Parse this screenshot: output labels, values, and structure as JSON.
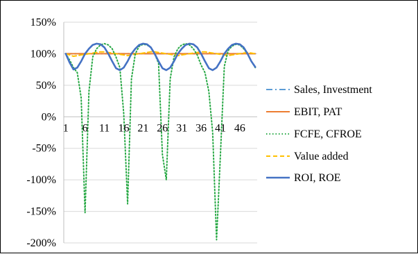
{
  "chart_data": {
    "type": "line",
    "title": "",
    "xlabel": "",
    "ylabel": "",
    "y_tick_labels": [
      "150%",
      "100%",
      "50%",
      "0%",
      "-50%",
      "-100%",
      "-150%",
      "-200%"
    ],
    "y_ticks": [
      150,
      100,
      50,
      0,
      -50,
      -100,
      -150,
      -200
    ],
    "x_tick_labels": [
      "1",
      "6",
      "11",
      "16",
      "21",
      "26",
      "31",
      "36",
      "41",
      "46"
    ],
    "x_ticks": [
      1,
      6,
      11,
      16,
      21,
      26,
      31,
      36,
      41,
      46
    ],
    "xlim": [
      0.5,
      50.5
    ],
    "ylim": [
      -200,
      150
    ],
    "grid": "horizontal",
    "legend_position": "right",
    "x": [
      1,
      2,
      3,
      4,
      5,
      6,
      7,
      8,
      9,
      10,
      11,
      12,
      13,
      14,
      15,
      16,
      17,
      18,
      19,
      20,
      21,
      22,
      23,
      24,
      25,
      26,
      27,
      28,
      29,
      30,
      31,
      32,
      33,
      34,
      35,
      36,
      37,
      38,
      39,
      40,
      41,
      42,
      43,
      44,
      45,
      46,
      47,
      48,
      49,
      50
    ],
    "series": [
      {
        "name": "Sales, Investment",
        "color": "#5b9bd5",
        "dash": "dash-dot",
        "values": [
          100,
          100,
          100,
          100,
          100,
          100,
          100,
          100,
          100,
          100,
          100,
          100,
          100,
          100,
          100,
          100,
          100,
          100,
          100,
          100,
          100,
          100,
          100,
          100,
          100,
          100,
          100,
          100,
          100,
          100,
          100,
          100,
          100,
          100,
          100,
          100,
          100,
          100,
          100,
          100,
          100,
          100,
          100,
          100,
          100,
          100,
          100,
          100,
          100,
          100
        ]
      },
      {
        "name": "EBIT, PAT",
        "color": "#ed7d31",
        "dash": "solid",
        "values": [
          100,
          100,
          100,
          100,
          100,
          100,
          100,
          100,
          100,
          100,
          100,
          100,
          100,
          100,
          100,
          100,
          100,
          100,
          100,
          100,
          100,
          100,
          100,
          100,
          100,
          100,
          100,
          100,
          100,
          100,
          100,
          100,
          100,
          100,
          100,
          100,
          100,
          100,
          100,
          100,
          100,
          100,
          100,
          100,
          100,
          100,
          100,
          100,
          100,
          100
        ]
      },
      {
        "name": "FCFE, CFROE",
        "color": "#27a844",
        "dash": "dotted",
        "values": [
          100,
          90,
          78,
          70,
          30,
          -152,
          40,
          95,
          108,
          114,
          116,
          114,
          108,
          95,
          78,
          5,
          -138,
          60,
          100,
          112,
          115,
          114,
          110,
          100,
          85,
          -60,
          -100,
          60,
          95,
          108,
          114,
          116,
          114,
          108,
          98,
          82,
          70,
          40,
          -25,
          -195,
          -60,
          80,
          105,
          112,
          115,
          114,
          108,
          100,
          88,
          78
        ]
      },
      {
        "name": "Value added",
        "color": "#ffc000",
        "dash": "dashed",
        "values": [
          100,
          98,
          96,
          97,
          98,
          99,
          100,
          101,
          102,
          103,
          103,
          102,
          101,
          100,
          99,
          98,
          97,
          98,
          99,
          100,
          101,
          102,
          103,
          103,
          102,
          101,
          100,
          99,
          98,
          97,
          98,
          99,
          100,
          101,
          102,
          103,
          103,
          102,
          101,
          100,
          99,
          98,
          97,
          98,
          99,
          100,
          101,
          102,
          101,
          100
        ]
      },
      {
        "name": "ROI, ROE",
        "color": "#4472c4",
        "dash": "solid",
        "values": [
          100,
          86,
          75,
          78,
          88,
          100,
          108,
          114,
          116,
          115,
          110,
          100,
          88,
          77,
          74,
          78,
          88,
          100,
          108,
          114,
          116,
          115,
          110,
          100,
          88,
          77,
          74,
          78,
          88,
          100,
          108,
          114,
          116,
          115,
          110,
          100,
          88,
          77,
          74,
          78,
          88,
          100,
          108,
          114,
          116,
          115,
          110,
          100,
          88,
          79
        ]
      }
    ]
  }
}
